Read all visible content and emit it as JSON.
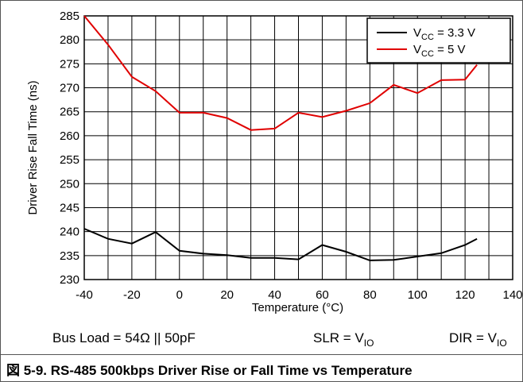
{
  "chart_data": {
    "type": "line",
    "xlabel": "Temperature (°C)",
    "ylabel": "Driver Rise Fall Time (ns)",
    "xlim": [
      -40,
      140
    ],
    "ylim": [
      230,
      285
    ],
    "x_ticks": [
      -40,
      -20,
      0,
      20,
      40,
      60,
      80,
      100,
      120,
      140
    ],
    "y_ticks": [
      230,
      235,
      240,
      245,
      250,
      255,
      260,
      265,
      270,
      275,
      280,
      285
    ],
    "x_grid_step": 10,
    "grid": true,
    "legend_position": "top-right",
    "series": [
      {
        "name_main": "V",
        "name_sub": "CC",
        "name_rest": " = 3.3 V",
        "color": "#000000",
        "x": [
          -40,
          -30,
          -20,
          -10,
          0,
          10,
          20,
          30,
          40,
          50,
          60,
          70,
          80,
          90,
          100,
          110,
          120,
          125
        ],
        "y": [
          240.6,
          238.5,
          237.5,
          239.9,
          236.0,
          235.4,
          235.1,
          234.5,
          234.5,
          234.2,
          237.2,
          235.8,
          234.0,
          234.1,
          234.8,
          235.5,
          237.2,
          238.5
        ]
      },
      {
        "name_main": "V",
        "name_sub": "CC",
        "name_rest": " = 5 V",
        "color": "#e00000",
        "x": [
          -40,
          -30,
          -20,
          -10,
          0,
          10,
          20,
          30,
          40,
          50,
          60,
          70,
          80,
          90,
          100,
          110,
          120,
          125
        ],
        "y": [
          285,
          279,
          272.3,
          269.3,
          264.8,
          264.8,
          263.7,
          261.2,
          261.5,
          264.8,
          263.9,
          265.2,
          266.8,
          270.6,
          268.9,
          271.6,
          271.7,
          274.8
        ]
      }
    ],
    "notes": [
      {
        "main": "Bus Load = 54Ω || 50pF",
        "sub": ""
      },
      {
        "main": "SLR = V",
        "sub": "IO"
      },
      {
        "main": "DIR = V",
        "sub": "IO"
      }
    ]
  },
  "caption": "図 5-9. RS-485 500kbps Driver Rise or Fall Time vs Temperature"
}
